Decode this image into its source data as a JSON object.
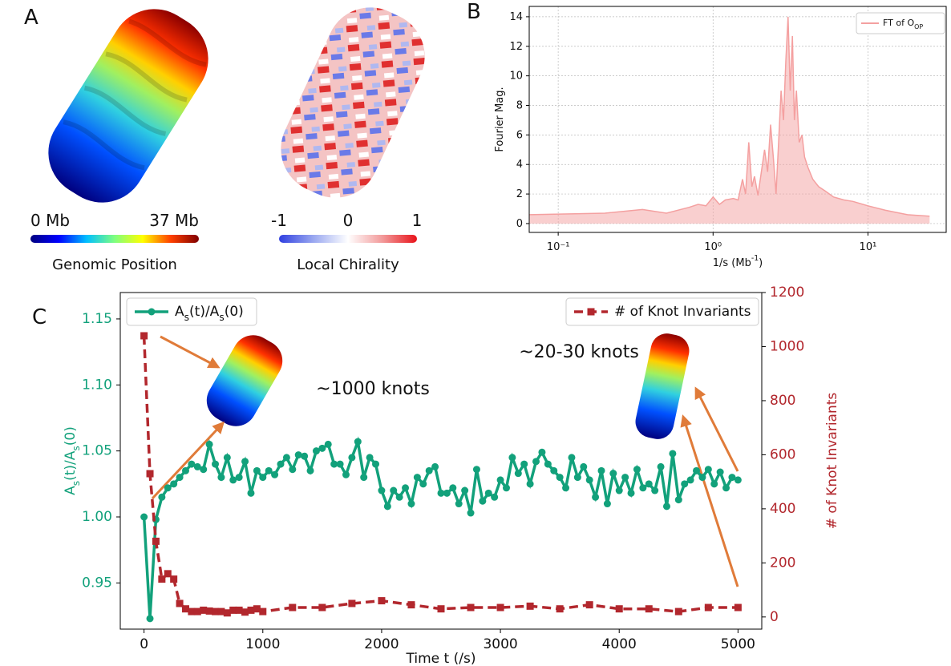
{
  "chart_data": [
    {
      "type": "colorbar",
      "label": "A",
      "colorbars": [
        {
          "title": "Genomic Position",
          "lim": [
            0,
            37
          ],
          "ticks": [
            {
              "value": 0,
              "label": "0 Mb"
            },
            {
              "value": 37,
              "label": "37 Mb"
            }
          ],
          "colors": [
            "#00007f",
            "#0000ff",
            "#00bfff",
            "#7fff7f",
            "#ffff00",
            "#ff4000",
            "#7f0000"
          ]
        },
        {
          "title": "Local Chirality",
          "lim": [
            -1,
            1
          ],
          "ticks": [
            -1,
            0,
            1
          ],
          "colors": [
            "#2f3fe0",
            "#9aa8f0",
            "#ffffff",
            "#f29a9a",
            "#e8131a"
          ]
        }
      ]
    },
    {
      "type": "area",
      "label": "B",
      "xlabel": "1/s (Mb^{-1})",
      "ylabel": "Fourier Mag.",
      "log_x": true,
      "grid": true,
      "legend": "upper right",
      "x": [
        0.065,
        0.2,
        0.35,
        0.5,
        0.7,
        0.8,
        0.9,
        1.0,
        1.1,
        1.2,
        1.35,
        1.45,
        1.55,
        1.62,
        1.7,
        1.78,
        1.85,
        1.95,
        2.05,
        2.15,
        2.25,
        2.35,
        2.45,
        2.55,
        2.65,
        2.75,
        2.85,
        2.95,
        3.05,
        3.15,
        3.25,
        3.35,
        3.45,
        3.6,
        3.75,
        3.9,
        4.1,
        4.4,
        4.8,
        5.3,
        6,
        7,
        8,
        10,
        13,
        18,
        25
      ],
      "series": [
        {
          "name": "FT of O_{OP}",
          "color": "#f4a0a0",
          "values": [
            0.6,
            0.7,
            0.95,
            0.7,
            1.1,
            1.3,
            1.2,
            1.8,
            1.3,
            1.6,
            1.7,
            1.6,
            3.0,
            2.0,
            5.5,
            2.5,
            3.2,
            1.9,
            3.5,
            5.0,
            3.5,
            6.7,
            4.5,
            2.0,
            5.5,
            9.0,
            7.0,
            11.0,
            14.0,
            9.0,
            12.7,
            7.0,
            9.0,
            5.5,
            6.0,
            4.5,
            3.8,
            3.0,
            2.5,
            2.2,
            1.8,
            1.6,
            1.5,
            1.2,
            0.9,
            0.6,
            0.5
          ]
        }
      ],
      "xlim": [
        0.065,
        32
      ],
      "ylim": [
        -0.6,
        14.7
      ],
      "xticks": [
        {
          "value": 0.1,
          "label": "10⁻¹"
        },
        {
          "value": 1,
          "label": "10⁰"
        },
        {
          "value": 10,
          "label": "10¹"
        }
      ],
      "yticks": [
        0,
        2,
        4,
        6,
        8,
        10,
        12,
        14
      ]
    },
    {
      "type": "line",
      "label": "C",
      "xlabel": "Time t (/s)",
      "ylabel": "A_{s}(t)/A_{s}(0)",
      "y2label": "# of Knot Invariants",
      "annotations": [
        "~1000 knots",
        "~20-30 knots"
      ],
      "series": [
        {
          "name": "A_{s}(t)/A_{s}(0)",
          "color": "#12a17b",
          "marker": "circle",
          "legend": "upper left",
          "x": [
            0,
            50,
            100,
            150,
            200,
            250,
            300,
            350,
            400,
            450,
            500,
            550,
            600,
            650,
            700,
            750,
            800,
            850,
            900,
            950,
            1000,
            1050,
            1100,
            1150,
            1200,
            1250,
            1300,
            1350,
            1400,
            1450,
            1500,
            1550,
            1600,
            1650,
            1700,
            1750,
            1800,
            1850,
            1900,
            1950,
            2000,
            2050,
            2100,
            2150,
            2200,
            2250,
            2300,
            2350,
            2400,
            2450,
            2500,
            2550,
            2600,
            2650,
            2700,
            2750,
            2800,
            2850,
            2900,
            2950,
            3000,
            3050,
            3100,
            3150,
            3200,
            3250,
            3300,
            3350,
            3400,
            3450,
            3500,
            3550,
            3600,
            3650,
            3700,
            3750,
            3800,
            3850,
            3900,
            3950,
            4000,
            4050,
            4100,
            4150,
            4200,
            4250,
            4300,
            4350,
            4400,
            4450,
            4500,
            4550,
            4600,
            4650,
            4700,
            4750,
            4800,
            4850,
            4900,
            4950,
            5000
          ],
          "values": [
            1.0,
            0.923,
            0.998,
            1.015,
            1.022,
            1.025,
            1.03,
            1.035,
            1.04,
            1.038,
            1.036,
            1.055,
            1.04,
            1.03,
            1.045,
            1.028,
            1.03,
            1.042,
            1.018,
            1.035,
            1.03,
            1.035,
            1.032,
            1.04,
            1.045,
            1.036,
            1.047,
            1.046,
            1.035,
            1.05,
            1.052,
            1.055,
            1.04,
            1.04,
            1.032,
            1.045,
            1.057,
            1.03,
            1.045,
            1.04,
            1.02,
            1.008,
            1.02,
            1.015,
            1.022,
            1.01,
            1.03,
            1.025,
            1.035,
            1.038,
            1.018,
            1.018,
            1.022,
            1.01,
            1.02,
            1.003,
            1.036,
            1.012,
            1.018,
            1.015,
            1.028,
            1.022,
            1.045,
            1.033,
            1.04,
            1.025,
            1.042,
            1.049,
            1.04,
            1.035,
            1.03,
            1.022,
            1.045,
            1.03,
            1.038,
            1.028,
            1.015,
            1.035,
            1.01,
            1.033,
            1.02,
            1.03,
            1.018,
            1.036,
            1.022,
            1.025,
            1.02,
            1.038,
            1.008,
            1.048,
            1.013,
            1.025,
            1.028,
            1.035,
            1.03,
            1.036,
            1.025,
            1.034,
            1.022,
            1.03,
            1.028
          ]
        },
        {
          "name": "# of Knot Invariants",
          "color": "#b2272d",
          "marker": "square",
          "dashed": true,
          "axis": "y2",
          "legend": "upper right",
          "x": [
            0,
            50,
            100,
            150,
            200,
            250,
            300,
            350,
            400,
            450,
            500,
            550,
            600,
            650,
            700,
            750,
            800,
            850,
            900,
            950,
            1000,
            1250,
            1500,
            1750,
            2000,
            2250,
            2500,
            2750,
            3000,
            3250,
            3500,
            3750,
            4000,
            4250,
            4500,
            4750,
            5000
          ],
          "values": [
            1040,
            530,
            280,
            140,
            160,
            140,
            50,
            30,
            20,
            20,
            25,
            22,
            20,
            20,
            15,
            25,
            25,
            18,
            25,
            30,
            20,
            35,
            35,
            50,
            60,
            45,
            30,
            35,
            35,
            40,
            30,
            45,
            30,
            30,
            20,
            35,
            35
          ]
        }
      ],
      "xlim": [
        -200,
        5200
      ],
      "ylim": [
        0.915,
        1.17
      ],
      "y2lim": [
        -45,
        1200
      ],
      "xticks": [
        0,
        1000,
        2000,
        3000,
        4000,
        5000
      ],
      "yticks": [
        0.95,
        {
          "value": 1.0,
          "label": "1.00"
        },
        1.05,
        {
          "value": 1.1,
          "label": "1.10"
        },
        1.15
      ],
      "y2ticks": [
        0,
        200,
        400,
        600,
        800,
        1000,
        1200
      ]
    }
  ]
}
